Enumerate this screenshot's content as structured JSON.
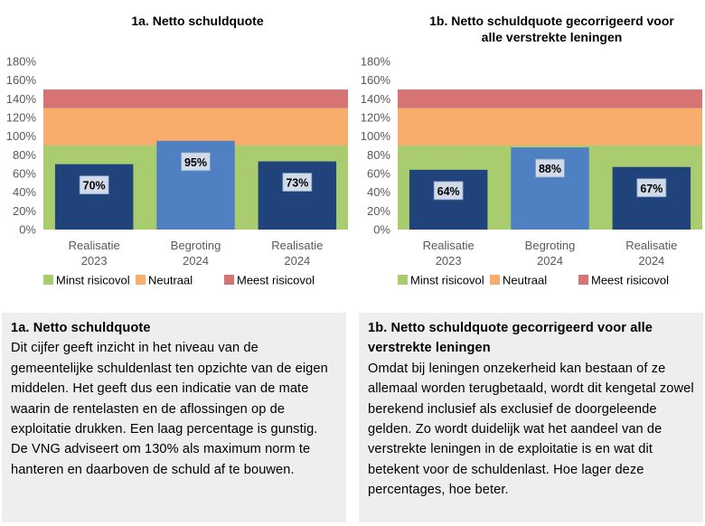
{
  "charts": [
    {
      "type": "bar",
      "title_lines": [
        "1a. Netto schuldquote"
      ],
      "categories": [
        [
          "Realisatie",
          "2023"
        ],
        [
          "Begroting",
          "2024"
        ],
        [
          "Realisatie",
          "2024"
        ]
      ],
      "values": [
        70,
        95,
        73
      ],
      "value_labels": [
        "70%",
        "95%",
        "73%"
      ],
      "yticks": [
        "0%",
        "20%",
        "40%",
        "60%",
        "80%",
        "100%",
        "120%",
        "140%",
        "160%",
        "180%"
      ],
      "ylim": [
        0,
        180
      ],
      "bands": [
        {
          "name": "Minst risicovol",
          "from": 0,
          "to": 90,
          "color": "#a9cd6e"
        },
        {
          "name": "Neutraal",
          "from": 90,
          "to": 130,
          "color": "#f9ad6d"
        },
        {
          "name": "Meest risicovol",
          "from": 130,
          "to": 150,
          "color": "#d67474"
        }
      ],
      "bar_colors": [
        "#1f437a",
        "#4f81c2",
        "#1f437a"
      ],
      "legend_position": "bottom"
    },
    {
      "type": "bar",
      "title_lines": [
        "1b. Netto schuldquote gecorrigeerd voor",
        "alle verstrekte leningen"
      ],
      "categories": [
        [
          "Realisatie",
          "2023"
        ],
        [
          "Begroting",
          "2024"
        ],
        [
          "Realisatie",
          "2024"
        ]
      ],
      "values": [
        64,
        88,
        67
      ],
      "value_labels": [
        "64%",
        "88%",
        "67%"
      ],
      "yticks": [
        "0%",
        "20%",
        "40%",
        "60%",
        "80%",
        "100%",
        "120%",
        "140%",
        "160%",
        "180%"
      ],
      "ylim": [
        0,
        180
      ],
      "bands": [
        {
          "name": "Minst risicovol",
          "from": 0,
          "to": 90,
          "color": "#a9cd6e"
        },
        {
          "name": "Neutraal",
          "from": 90,
          "to": 130,
          "color": "#f9ad6d"
        },
        {
          "name": "Meest risicovol",
          "from": 130,
          "to": 150,
          "color": "#d67474"
        }
      ],
      "bar_colors": [
        "#1f437a",
        "#4f81c2",
        "#1f437a"
      ],
      "legend_position": "bottom"
    }
  ],
  "panels": [
    {
      "title": "1a. Netto schuldquote",
      "body": "Dit cijfer geeft inzicht in het niveau van de gemeentelijke schuldenlast ten opzichte van de eigen middelen. Het geeft dus een indicatie van de mate waarin de rentelasten en de aflossingen op de exploitatie drukken. Een laag percentage is gunstig. De VNG adviseert om 130% als maximum norm te hanteren en daarboven de schuld af te bouwen."
    },
    {
      "title": "1b. Netto schuldquote gecorrigeerd voor alle verstrekte leningen",
      "body": "Omdat bij leningen onzekerheid kan bestaan of ze allemaal worden terugbetaald, wordt dit kengetal zowel berekend inclusief als exclusief de doorgeleende gelden. Zo wordt duidelijk wat het aandeel van de verstrekte leningen in de exploitatie is en wat dit betekent voor de schuldenlast. Hoe lager deze percentages, hoe beter."
    }
  ]
}
